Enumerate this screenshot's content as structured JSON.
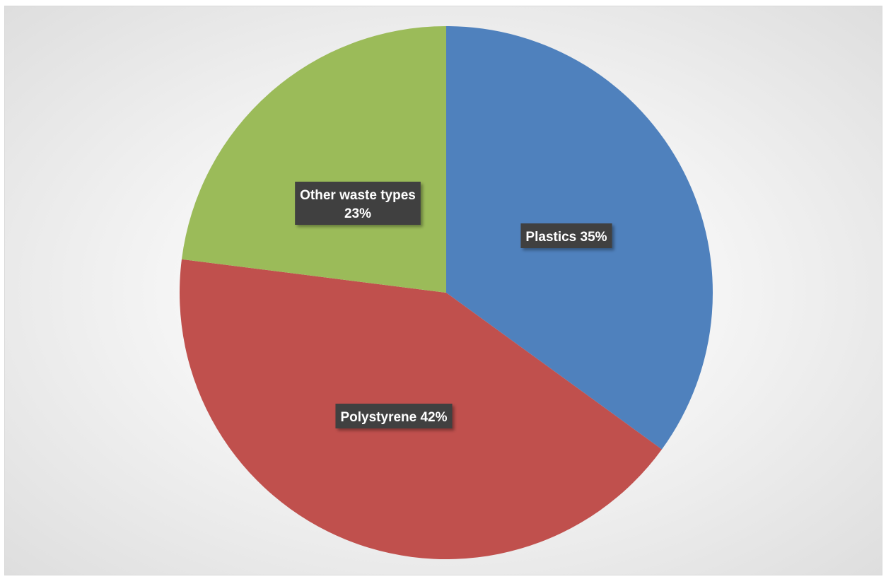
{
  "chart_data": {
    "type": "pie",
    "title": "",
    "slices": [
      {
        "name": "Plastics",
        "value": 35,
        "color": "#4f81bd",
        "label_lines": [
          "Plastics 35%"
        ]
      },
      {
        "name": "Polystyrene",
        "value": 42,
        "color": "#c0504d",
        "label_lines": [
          "Polystyrene 42%"
        ]
      },
      {
        "name": "Other waste types",
        "value": 23,
        "color": "#9bbb59",
        "label_lines": [
          "Other waste types",
          "23%"
        ]
      }
    ],
    "start_angle_deg": 0,
    "direction": "clockwise",
    "legend": "none",
    "data_label_style": "dark-box"
  }
}
